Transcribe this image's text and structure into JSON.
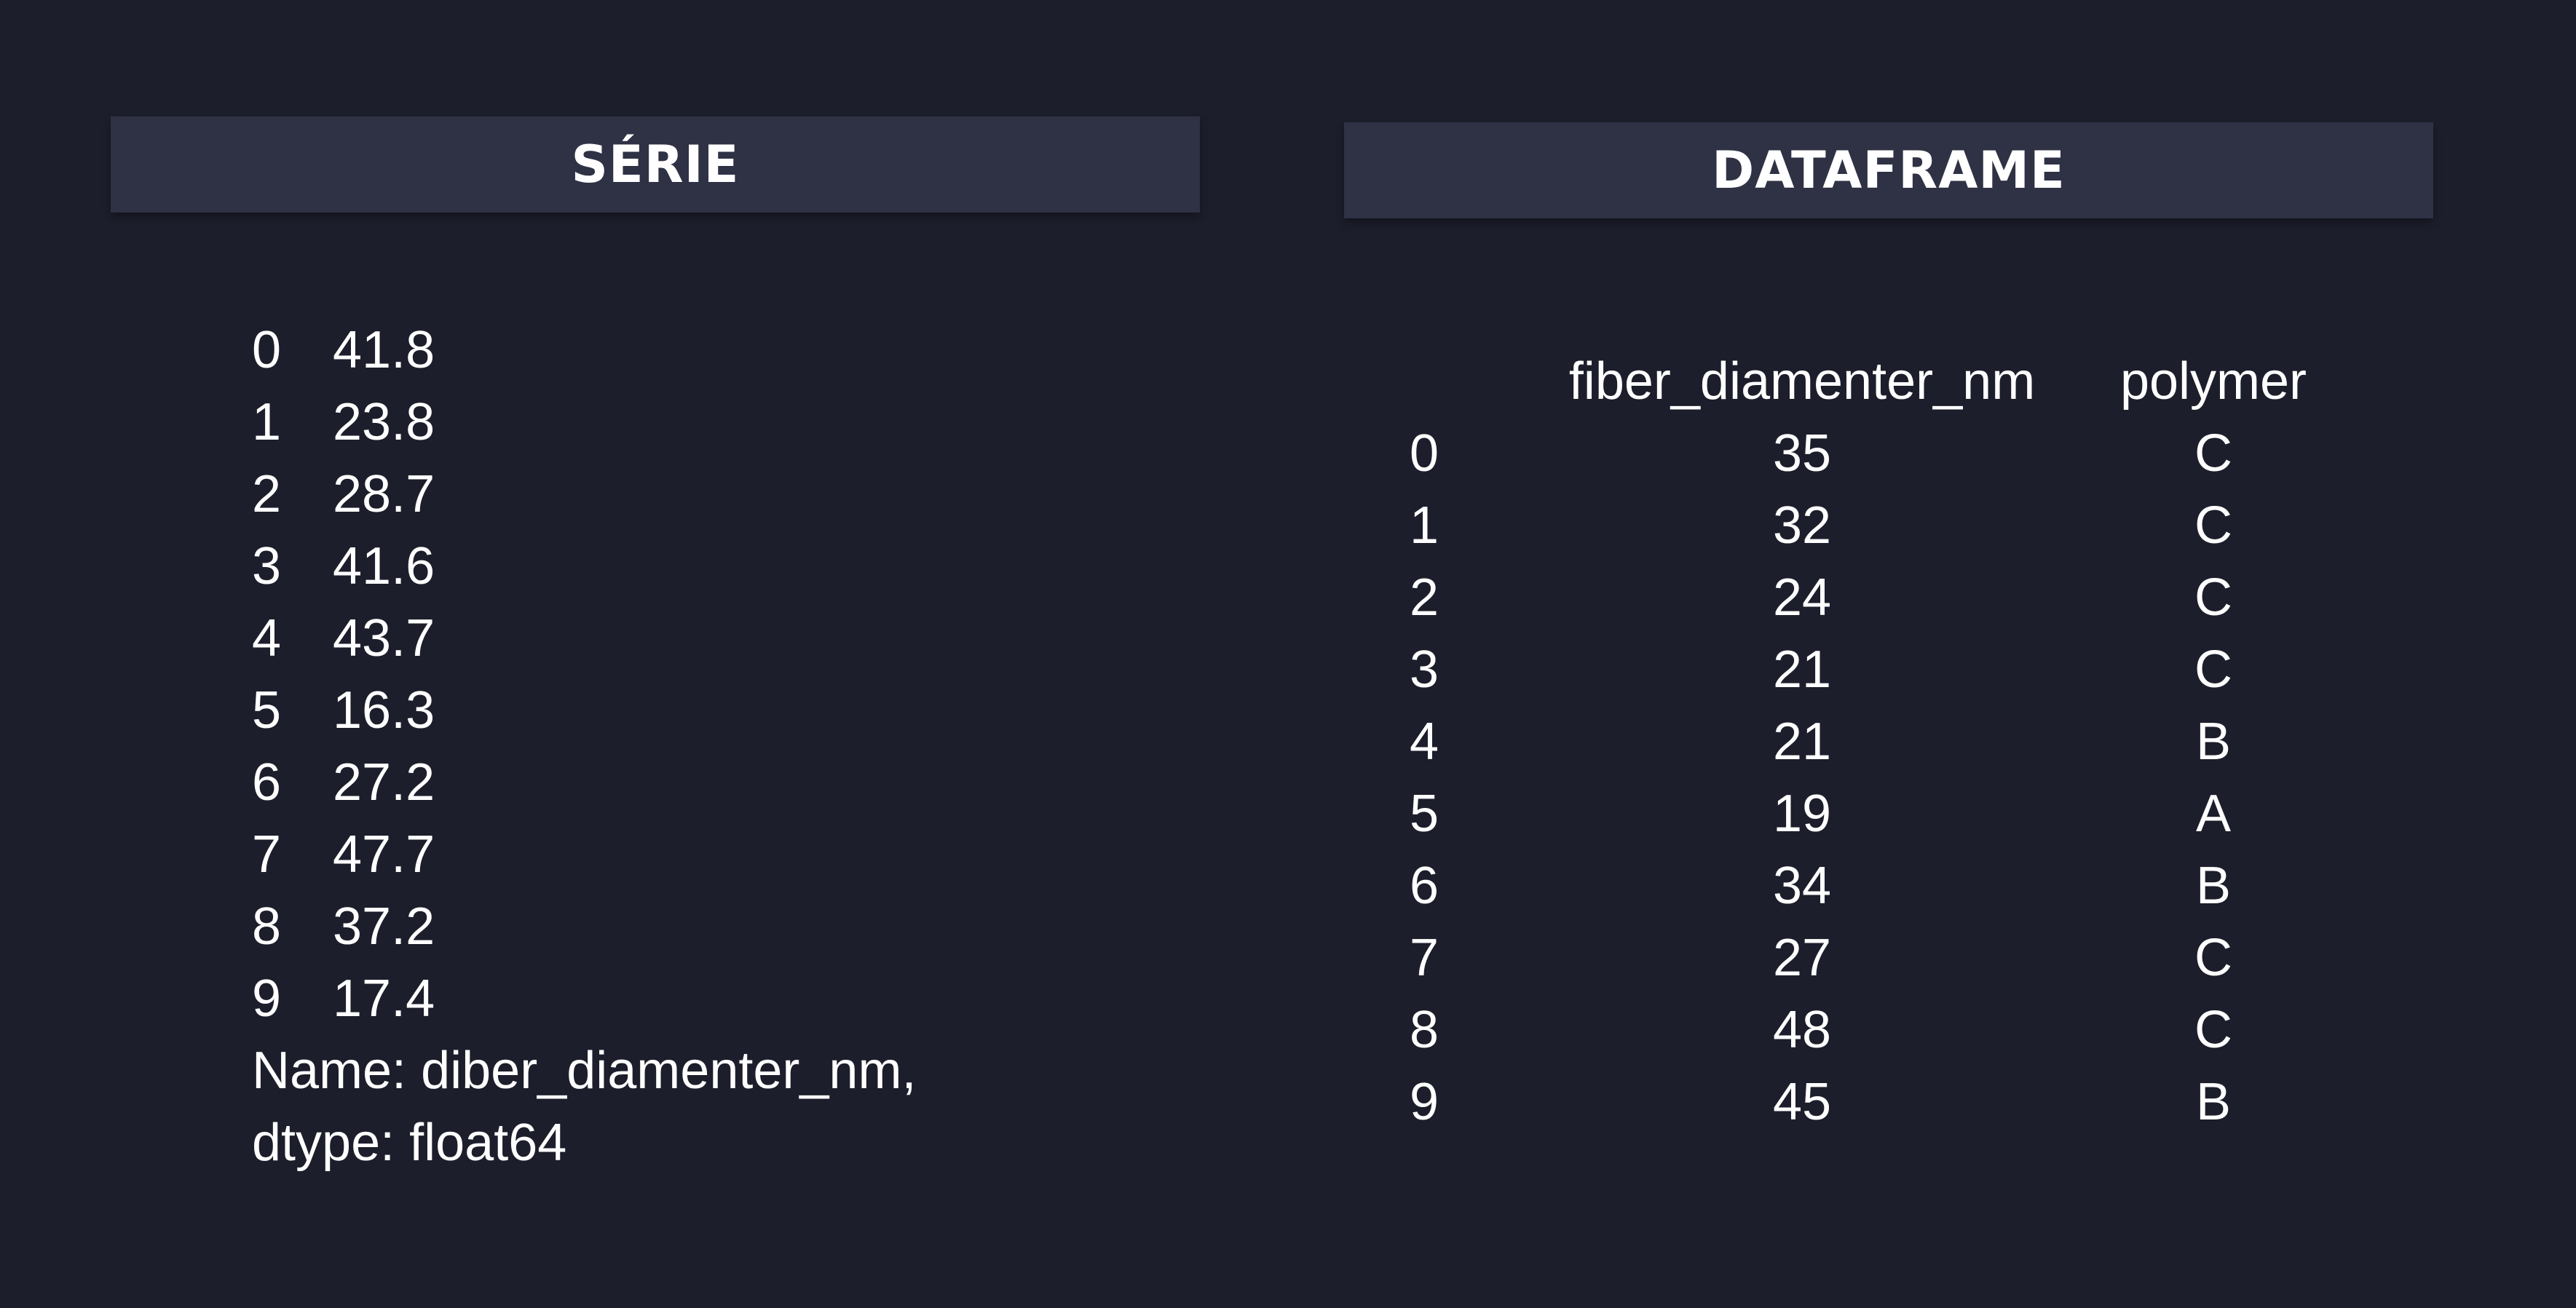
{
  "serie": {
    "title": "SÉRIE",
    "rows": [
      {
        "index": "0",
        "value": "41.8"
      },
      {
        "index": "1",
        "value": "23.8"
      },
      {
        "index": "2",
        "value": "28.7"
      },
      {
        "index": "3",
        "value": "41.6"
      },
      {
        "index": "4",
        "value": "43.7"
      },
      {
        "index": "5",
        "value": "16.3"
      },
      {
        "index": "6",
        "value": "27.2"
      },
      {
        "index": "7",
        "value": "47.7"
      },
      {
        "index": "8",
        "value": "37.2"
      },
      {
        "index": "9",
        "value": "17.4"
      }
    ],
    "name_line": "Name: diber_diamenter_nm,",
    "dtype_line": "dtype: float64"
  },
  "dataframe": {
    "title": "DATAFRAME",
    "columns": [
      "",
      "fiber_diamenter_nm",
      "polymer"
    ],
    "rows": [
      {
        "index": "0",
        "fiber": "35",
        "polymer": "C"
      },
      {
        "index": "1",
        "fiber": "32",
        "polymer": "C"
      },
      {
        "index": "2",
        "fiber": "24",
        "polymer": "C"
      },
      {
        "index": "3",
        "fiber": "21",
        "polymer": "C"
      },
      {
        "index": "4",
        "fiber": "21",
        "polymer": "B"
      },
      {
        "index": "5",
        "fiber": "19",
        "polymer": "A"
      },
      {
        "index": "6",
        "fiber": "34",
        "polymer": "B"
      },
      {
        "index": "7",
        "fiber": "27",
        "polymer": "C"
      },
      {
        "index": "8",
        "fiber": "48",
        "polymer": "C"
      },
      {
        "index": "9",
        "fiber": "45",
        "polymer": "B"
      }
    ]
  }
}
